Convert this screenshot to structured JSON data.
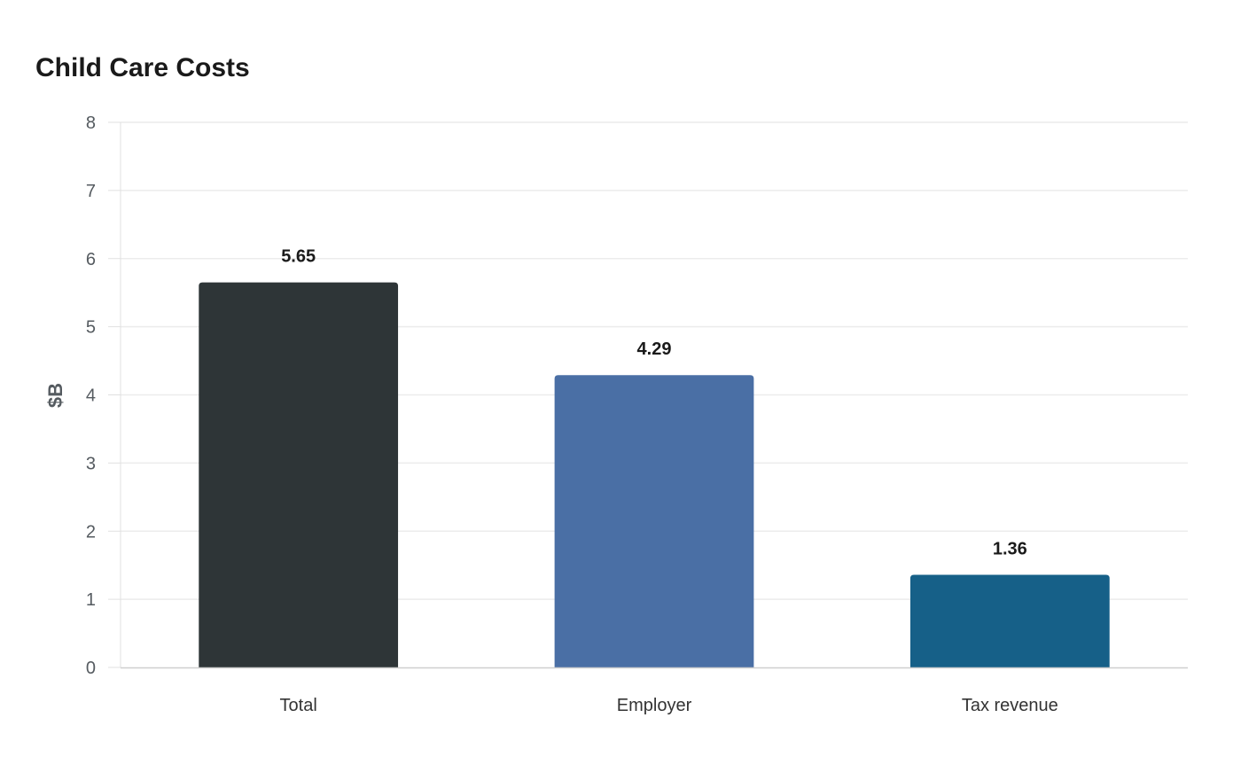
{
  "chart_data": {
    "type": "bar",
    "title": "Child Care Costs",
    "xlabel": "",
    "ylabel": "$B",
    "categories": [
      "Total",
      "Employer",
      "Tax revenue"
    ],
    "values": [
      5.65,
      4.29,
      1.36
    ],
    "data_labels": [
      "5.65",
      "4.29",
      "1.36"
    ],
    "colors": [
      "#2e3537",
      "#4a6fa5",
      "#166088"
    ],
    "ylim": [
      0,
      8
    ],
    "yticks": [
      0,
      1,
      2,
      3,
      4,
      5,
      6,
      7,
      8
    ],
    "grid": true,
    "legend": "none"
  }
}
